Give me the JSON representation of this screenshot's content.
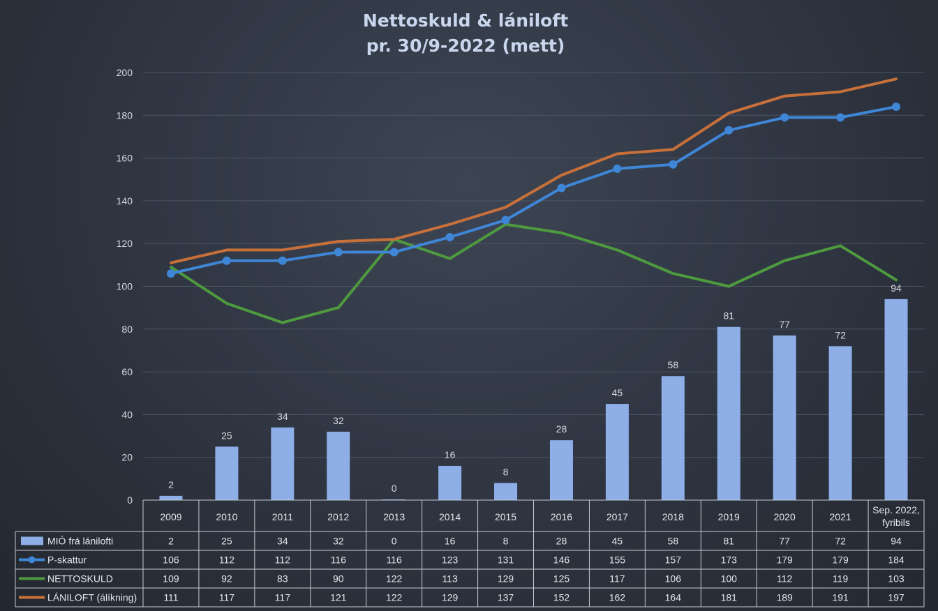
{
  "chart_data": {
    "type": "bar",
    "title": "Nettoskuld & lániloft",
    "subtitle": "pr. 30/9-2022 (mett)",
    "categories": [
      "2009",
      "2010",
      "2011",
      "2012",
      "2013",
      "2014",
      "2015",
      "2016",
      "2017",
      "2018",
      "2019",
      "2020",
      "2021",
      "Sep. 2022,|fyribils"
    ],
    "ylim": [
      0,
      200
    ],
    "yticks": [
      0,
      20,
      40,
      60,
      80,
      100,
      120,
      140,
      160,
      180,
      200
    ],
    "grid": true,
    "legend": "table",
    "series": [
      {
        "name": "MIÓ frá lánilofti",
        "type": "bar",
        "color": "#8eaee8",
        "values": [
          2,
          25,
          34,
          32,
          0,
          16,
          8,
          28,
          45,
          58,
          81,
          77,
          72,
          94
        ]
      },
      {
        "name": "P-skattur",
        "type": "line",
        "markers": true,
        "color": "#3f86d6",
        "values": [
          106,
          112,
          112,
          116,
          116,
          123,
          131,
          146,
          155,
          157,
          173,
          179,
          179,
          184
        ]
      },
      {
        "name": "NETTOSKULD",
        "type": "line",
        "markers": false,
        "color": "#4e9a3f",
        "values": [
          109,
          92,
          83,
          90,
          122,
          113,
          129,
          125,
          117,
          106,
          100,
          112,
          119,
          103
        ]
      },
      {
        "name": "LÁNILOFT (álíkning)",
        "type": "line",
        "markers": false,
        "color": "#c8703a",
        "values": [
          111,
          117,
          117,
          121,
          122,
          129,
          137,
          152,
          162,
          164,
          181,
          189,
          191,
          197
        ]
      }
    ]
  }
}
